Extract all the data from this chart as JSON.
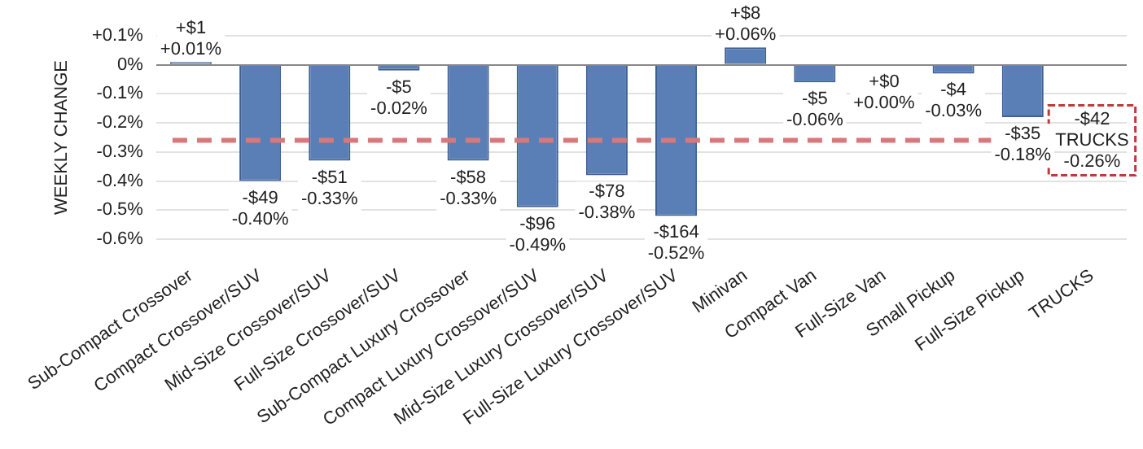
{
  "chart_data": {
    "type": "bar",
    "ylabel": "WEEKLY CHANGE",
    "categories": [
      "Sub-Compact Crossover",
      "Compact Crossover/SUV",
      "Mid-Size Crossover/SUV",
      "Full-Size Crossover/SUV",
      "Sub-Compact Luxury Crossover",
      "Compact Luxury Crossover/SUV",
      "Mid-Size Luxury Crossover/SUV",
      "Full-Size Luxury Crossover/SUV",
      "Minivan",
      "Compact Van",
      "Full-Size Van",
      "Small Pickup",
      "Full-Size Pickup",
      "TRUCKS"
    ],
    "values": [
      0.01,
      -0.4,
      -0.33,
      -0.02,
      -0.33,
      -0.49,
      -0.38,
      -0.52,
      0.06,
      -0.06,
      0.0,
      -0.03,
      -0.18,
      null
    ],
    "value_labels": [
      "+$1\n+0.01%",
      "-$49\n-0.40%",
      "-$51\n-0.33%",
      "-$5\n-0.02%",
      "-$58\n-0.33%",
      "-$96\n-0.49%",
      "-$78\n-0.38%",
      "-$164\n-0.52%",
      "+$8\n+0.06%",
      "-$5\n-0.06%",
      "+$0\n+0.00%",
      "-$4\n-0.03%",
      "-$35\n-0.18%",
      null
    ],
    "color": "#5a7fb6",
    "ylim": [
      -0.6,
      0.1
    ],
    "yticks": [
      {
        "value": 0.1,
        "label": "+0.1%"
      },
      {
        "value": 0,
        "label": "0%"
      },
      {
        "value": -0.1,
        "label": "-0.1%"
      },
      {
        "value": -0.2,
        "label": "-0.2%"
      },
      {
        "value": -0.3,
        "label": "-0.3%"
      },
      {
        "value": -0.4,
        "label": "-0.4%"
      },
      {
        "value": -0.5,
        "label": "-0.5%"
      },
      {
        "value": -0.6,
        "label": "-0.6%"
      }
    ],
    "grid": "y",
    "legend": false,
    "ref_lines": [
      {
        "axis": "y",
        "value": -0.26,
        "label": "-$42\nTRUCKS\n-0.26%",
        "color": "#d9787a",
        "line_style": "dashed"
      }
    ]
  }
}
